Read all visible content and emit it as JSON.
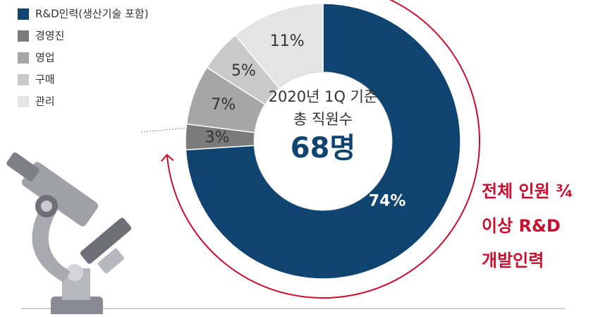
{
  "chart_data": {
    "type": "pie",
    "categories": [
      "R&D인력(생산기술 포함)",
      "경영진",
      "영업",
      "구매",
      "관리"
    ],
    "values": [
      74,
      3,
      7,
      5,
      11
    ],
    "value_labels": [
      "74%",
      "3%",
      "7%",
      "5%",
      "11%"
    ],
    "colors": [
      "#0f4470",
      "#7b7b7b",
      "#a6a6a6",
      "#c9c9c9",
      "#e4e4e4"
    ],
    "center_text": [
      "2020년 1Q 기준",
      "총 직원수"
    ],
    "center_total": "68명",
    "annotation": [
      "전체 인원 ¾",
      "이상 R&D",
      "개발인력"
    ]
  }
}
